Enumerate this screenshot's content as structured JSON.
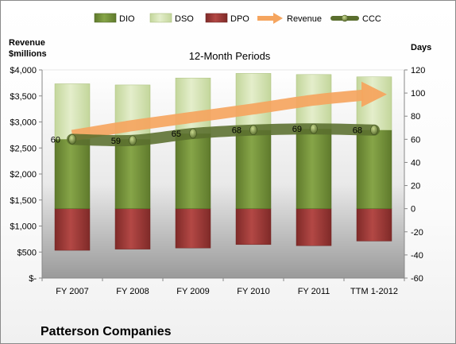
{
  "chart_data": {
    "type": "bar",
    "title": "12-Month Periods",
    "company": "Patterson Companies",
    "ylabel_left": "Revenue\n$millions",
    "ylabel_right": "Days",
    "categories": [
      "FY 2007",
      "FY 2008",
      "FY 2009",
      "FY 2010",
      "FY 2011",
      "TTM 1-2012"
    ],
    "left_axis": {
      "ylim": [
        0,
        4000
      ],
      "ticks": [
        0,
        500,
        1000,
        1500,
        2000,
        2500,
        3000,
        3500,
        4000
      ],
      "tick_labels": [
        "$-",
        "$500",
        "$1,000",
        "$1,500",
        "$2,000",
        "$2,500",
        "$3,000",
        "$3,500",
        "$4,000"
      ]
    },
    "right_axis": {
      "ylim": [
        -60,
        120
      ],
      "ticks": [
        -60,
        -40,
        -20,
        0,
        20,
        40,
        60,
        80,
        100,
        120
      ],
      "tick_labels": [
        "-60",
        "-40",
        "-20",
        "0",
        "20",
        "40",
        "60",
        "80",
        "100",
        "120"
      ]
    },
    "legend": {
      "position": "top",
      "entries": [
        {
          "name": "DIO",
          "kind": "bar"
        },
        {
          "name": "DSO",
          "kind": "bar"
        },
        {
          "name": "DPO",
          "kind": "bar"
        },
        {
          "name": "Revenue",
          "kind": "arrow"
        },
        {
          "name": "CCC",
          "kind": "line"
        }
      ]
    },
    "series": [
      {
        "name": "DIO",
        "axis": "right",
        "stacked": true,
        "values": [
          60,
          60,
          65,
          68,
          69,
          68
        ],
        "color": "#77933c"
      },
      {
        "name": "DSO",
        "axis": "right",
        "stacked": true,
        "values": [
          48,
          47,
          48,
          49,
          47,
          46
        ],
        "color": "#d7e4bd"
      },
      {
        "name": "DPO",
        "axis": "right",
        "stacked": false,
        "values": [
          -36,
          -35,
          -34,
          -31,
          -32,
          -28
        ],
        "color": "#963634"
      },
      {
        "name": "Revenue",
        "axis": "left",
        "type": "arrow",
        "values": [
          2740,
          2930,
          3090,
          3250,
          3420,
          3530
        ],
        "color": "#f5a55f"
      },
      {
        "name": "CCC",
        "axis": "right",
        "type": "line",
        "values": [
          60,
          59,
          65,
          68,
          69,
          68
        ],
        "labels": [
          "60",
          "59",
          "65",
          "68",
          "69",
          "68"
        ],
        "color": "#5a6e2e"
      }
    ],
    "grid": false
  }
}
